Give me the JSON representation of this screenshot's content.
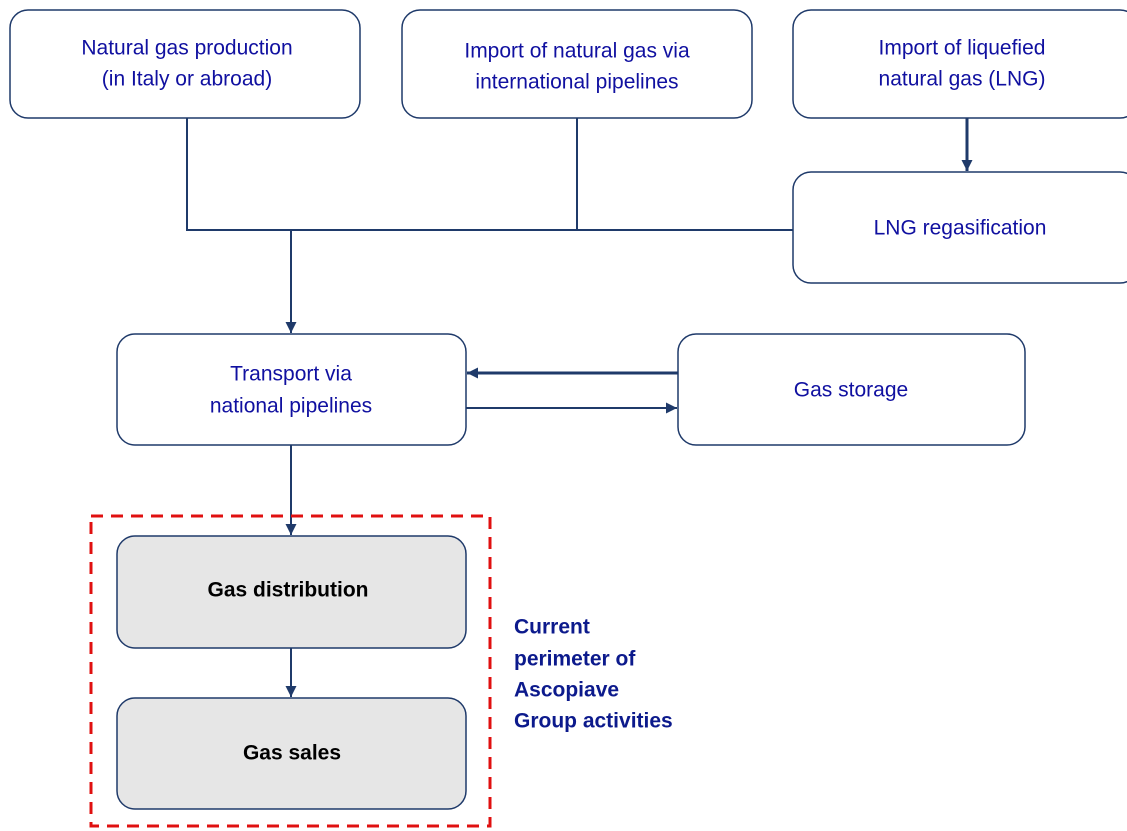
{
  "nodes": [
    {
      "label": [
        "Natural gas production",
        "(in Italy or abroad)"
      ]
    },
    {
      "label": [
        "Import of natural gas via",
        "international pipelines"
      ]
    },
    {
      "label": [
        "Import of liquefied",
        "natural gas (LNG)"
      ]
    },
    {
      "label": [
        "LNG regasification"
      ]
    },
    {
      "label": [
        "Transport via",
        "national pipelines"
      ]
    },
    {
      "label": [
        "Gas storage"
      ]
    },
    {
      "label": [
        "Gas distribution"
      ]
    },
    {
      "label": [
        "Gas sales"
      ]
    }
  ],
  "annotation": [
    "Current",
    "perimeter of",
    "Ascopiave",
    "Group activities"
  ]
}
